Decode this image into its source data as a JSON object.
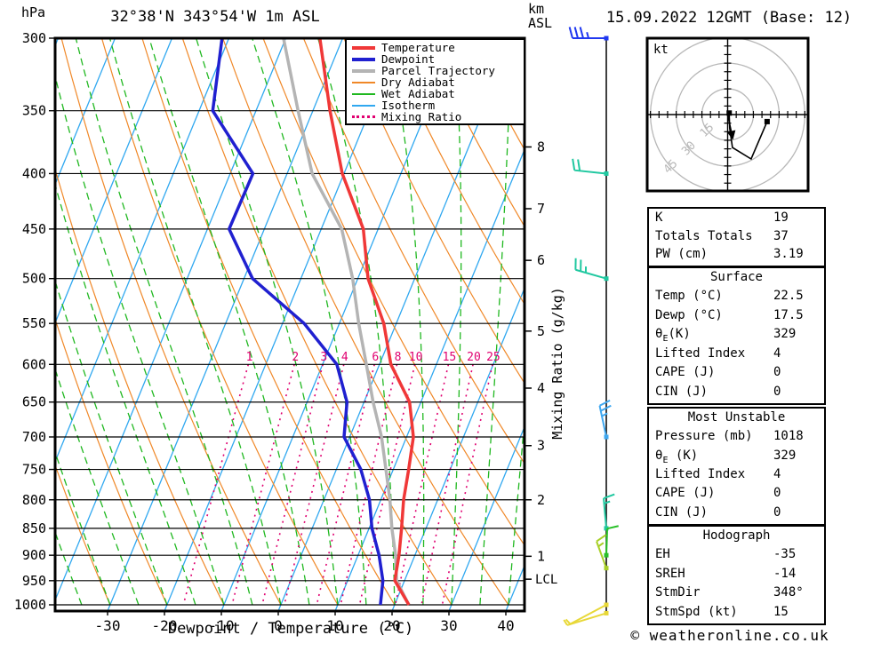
{
  "header": {
    "pressure_unit": "hPa",
    "title": "32°38'N 343°54'W 1m ASL",
    "km": "km",
    "asl": "ASL",
    "date": "15.09.2022 12GMT (Base: 12)"
  },
  "axes": {
    "xlabel": "Dewpoint / Temperature (°C)",
    "mixing_label": "Mixing Ratio (g/kg)",
    "lcl": "LCL",
    "lcl_pressure": 947,
    "pressure_ticks": [
      300,
      350,
      400,
      450,
      500,
      550,
      600,
      650,
      700,
      750,
      800,
      850,
      900,
      950,
      1000
    ],
    "temp_ticks": [
      -30,
      -20,
      -10,
      0,
      10,
      20,
      30,
      40
    ],
    "km_levels": [
      {
        "label": "8",
        "p": 378
      },
      {
        "label": "7",
        "p": 431
      },
      {
        "label": "6",
        "p": 481
      },
      {
        "label": "5",
        "p": 559
      },
      {
        "label": "4",
        "p": 631
      },
      {
        "label": "3",
        "p": 713
      },
      {
        "label": "2",
        "p": 800
      },
      {
        "label": "1",
        "p": 902
      }
    ]
  },
  "legend": {
    "items": [
      {
        "label": "Temperature",
        "color": "#f03838",
        "weight": 4,
        "dotted": false
      },
      {
        "label": "Dewpoint",
        "color": "#2020d0",
        "weight": 4,
        "dotted": false
      },
      {
        "label": "Parcel Trajectory",
        "color": "#b4b4b4",
        "weight": 4,
        "dotted": false
      },
      {
        "label": "Dry Adiabat",
        "color": "#f08828",
        "weight": 2,
        "dotted": false
      },
      {
        "label": "Wet Adiabat",
        "color": "#20b820",
        "weight": 2,
        "dotted": false
      },
      {
        "label": "Isotherm",
        "color": "#30a8f0",
        "weight": 2,
        "dotted": false
      },
      {
        "label": "Mixing Ratio",
        "color": "#e00070",
        "weight": 3,
        "dotted": true
      }
    ]
  },
  "chart_data": {
    "type": "skewt_log_p",
    "title": "32°38'N 343°54'W 1m ASL",
    "pressure_unit": "hPa",
    "temperature_unit": "°C",
    "pressure_range": [
      300,
      1000
    ],
    "temperature_axis_range": [
      -30,
      40
    ],
    "isotherm_step_c": 10,
    "mixing_ratio_lines_g_kg": [
      1,
      2,
      3,
      4,
      6,
      8,
      10,
      15,
      20,
      25
    ],
    "sounding": {
      "pressure": [
        1000,
        950,
        900,
        850,
        800,
        750,
        700,
        650,
        600,
        550,
        500,
        450,
        400,
        350,
        300
      ],
      "temperature": [
        22.5,
        18.3,
        17.2,
        15.7,
        14.0,
        12.7,
        11.2,
        8.0,
        2.0,
        -2.2,
        -8.2,
        -12.6,
        -20.3,
        -27.0,
        -34.0
      ],
      "dewpoint": [
        17.5,
        16.2,
        13.7,
        10.5,
        8.0,
        4.3,
        -1.0,
        -3.0,
        -7.5,
        -16.2,
        -28.5,
        -36.2,
        -36.0,
        -47.6,
        -51.2
      ],
      "parcel": [
        22.5,
        18.6,
        16.6,
        14.0,
        11.6,
        8.7,
        5.6,
        1.6,
        -2.3,
        -6.6,
        -10.9,
        -16.4,
        -25.6,
        -32.6,
        -40.4
      ]
    },
    "wind_barbs": [
      {
        "p": 300,
        "color": "#2038f0",
        "angle": 180,
        "full": 3,
        "half": 1,
        "len": 38
      },
      {
        "p": 400,
        "color": "#20c8a0",
        "angle": 186,
        "full": 2,
        "half": 0,
        "len": 36
      },
      {
        "p": 500,
        "color": "#20c8a0",
        "angle": 196,
        "full": 2,
        "half": 1,
        "len": 36
      },
      {
        "p": 700,
        "color": "#40a8f0",
        "angle": 258,
        "full": 2,
        "half": 1,
        "len": 36
      },
      {
        "p": 850,
        "color": "#20c8a0",
        "angle": 265,
        "full": 1,
        "half": 1,
        "len": 34
      },
      {
        "p": 900,
        "color": "#28c028",
        "angle": 272,
        "full": 1,
        "half": 0,
        "len": 30
      },
      {
        "p": 925,
        "color": "#a8d028",
        "angle": 250,
        "full": 1,
        "half": 1,
        "len": 32
      },
      {
        "p": 1000,
        "color": "#e8d838",
        "angle": 152,
        "full": 0,
        "half": 1,
        "len": 46
      },
      {
        "p": 1018,
        "color": "#e8d838",
        "angle": 163,
        "full": 0,
        "half": 1,
        "len": 46
      }
    ],
    "hodograph": {
      "unit": "kt",
      "rings_kt": [
        15,
        30,
        45
      ],
      "trace_uv_kt": [
        [
          0.9,
          0.9
        ],
        [
          1.2,
          -8.0
        ],
        [
          2.8,
          -19.2
        ],
        [
          13.7,
          -25.9
        ],
        [
          23.0,
          -4.1
        ]
      ],
      "markers_uv_kt": [
        [
          0.9,
          0.9
        ],
        [
          23.0,
          -4.1
        ]
      ],
      "storm_dir_deg": 348,
      "storm_spd_kt": 15
    }
  },
  "tables": [
    {
      "title": "",
      "rows": [
        [
          "K",
          "19"
        ],
        [
          "Totals Totals",
          "37"
        ],
        [
          "PW (cm)",
          "3.19"
        ]
      ]
    },
    {
      "title": "Surface",
      "rows": [
        [
          "Temp (°C)",
          "22.5"
        ],
        [
          "Dewp (°C)",
          "17.5"
        ],
        [
          "θ_E(K)",
          "329"
        ],
        [
          "Lifted Index",
          "4"
        ],
        [
          "CAPE (J)",
          "0"
        ],
        [
          "CIN (J)",
          "0"
        ]
      ]
    },
    {
      "title": "Most Unstable",
      "rows": [
        [
          "Pressure (mb)",
          "1018"
        ],
        [
          "θ_E (K)",
          "329"
        ],
        [
          "Lifted Index",
          "4"
        ],
        [
          "CAPE (J)",
          "0"
        ],
        [
          "CIN (J)",
          "0"
        ]
      ]
    },
    {
      "title": "Hodograph",
      "rows": [
        [
          "EH",
          "-35"
        ],
        [
          "SREH",
          "-14"
        ],
        [
          "StmDir",
          "348°"
        ],
        [
          "StmSpd (kt)",
          "15"
        ]
      ]
    }
  ],
  "footer": {
    "watermark": "© weatheronline.co.uk"
  }
}
